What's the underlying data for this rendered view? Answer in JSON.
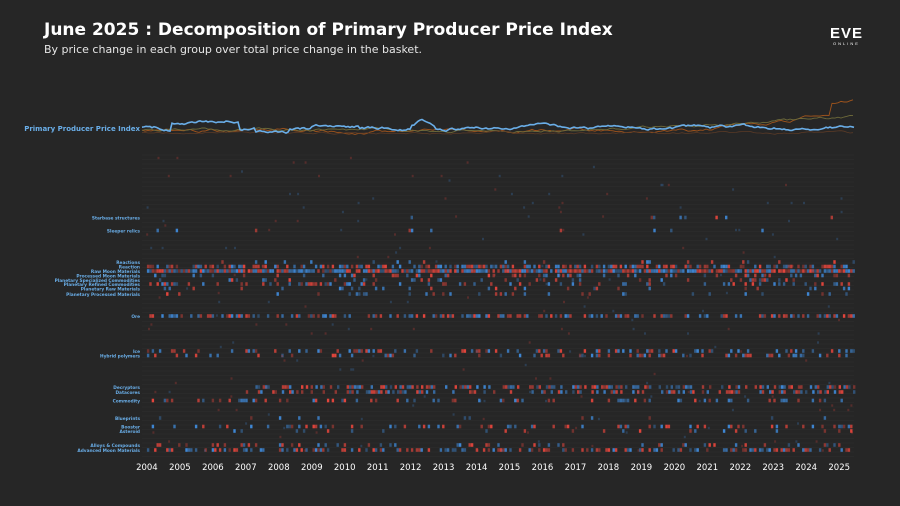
{
  "header": {
    "title": "June 2025 : Decomposition of Primary Producer Price Index",
    "subtitle": "By price change in each group over total price change in the basket.",
    "logo": "EVE",
    "logo_sub": "ONLINE"
  },
  "colors": {
    "background": "#262626",
    "index_line": "#6aaee8",
    "increase": "#e2453c",
    "decrease": "#3f88d6",
    "highlight_label": "#6aaee8",
    "dim_label": "#5a5a5a",
    "line_orange": "#a0541c",
    "line_olive": "#6e6a3a"
  },
  "chart_data": {
    "type": "heatmap",
    "index_series_label": "Primary Producer Price Index",
    "x_ticks": [
      "2004",
      "2005",
      "2006",
      "2007",
      "2008",
      "2009",
      "2010",
      "2011",
      "2012",
      "2013",
      "2014",
      "2015",
      "2016",
      "2017",
      "2018",
      "2019",
      "2020",
      "2021",
      "2022",
      "2023",
      "2024",
      "2025"
    ],
    "x_range": [
      2003.85,
      2025.45
    ],
    "highlighted_rows": [
      "Starbase structures",
      "Sleeper relics",
      "Reactions",
      "Reaction",
      "Raw Moon Materials",
      "Processed Moon Materials",
      "Planetary Specialized Commodities",
      "Planetary Refined Commodities",
      "Planetary Raw Materials",
      "Planetary Processed Materials",
      "Ore",
      "Ice",
      "Hybrid polymers",
      "Decryptors",
      "Datacores",
      "Commodity",
      "Blueprints",
      "Booster",
      "Asteroid",
      "Alloys & Compounds",
      "Advanced Moon Materials"
    ],
    "color_scale": {
      "increase": "red",
      "decrease": "blue"
    }
  }
}
